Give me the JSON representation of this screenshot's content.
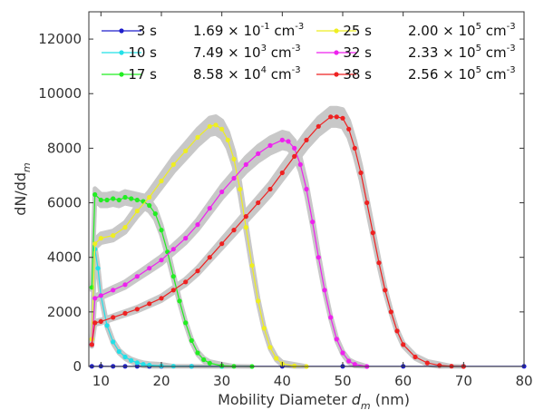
{
  "chart_data": {
    "type": "line",
    "title": "",
    "xlabel": "Mobility Diameter",
    "xlabel_symbol": "d",
    "xlabel_sub": "m",
    "xlabel_unit": "(nm)",
    "ylabel_main": "dN/dd",
    "ylabel_sub": "m",
    "xlim": [
      8,
      80
    ],
    "ylim": [
      0,
      13000
    ],
    "xticks": [
      10,
      20,
      30,
      40,
      50,
      60,
      70,
      80
    ],
    "yticks": [
      0,
      2000,
      4000,
      6000,
      8000,
      10000,
      12000
    ],
    "uncertainty_band_color": "#c8c8c8",
    "legend_location": "top",
    "series": [
      {
        "name": "3 s",
        "conc_mant": "1.69",
        "conc_exp": "-1",
        "conc_unit": "cm",
        "conc_unit_exp": "-3",
        "color": "#1f1fcc",
        "x": [
          8.5,
          10,
          12,
          14,
          16,
          18,
          20,
          25,
          30,
          40,
          50,
          60,
          70,
          80
        ],
        "y": [
          5,
          10,
          5,
          5,
          5,
          5,
          5,
          5,
          5,
          5,
          5,
          5,
          5,
          5
        ]
      },
      {
        "name": "10 s",
        "conc_mant": "7.49",
        "conc_exp": "3",
        "conc_unit": "cm",
        "conc_unit_exp": "-3",
        "color": "#22e0e8",
        "x": [
          8.5,
          9,
          9.5,
          10,
          11,
          12,
          13,
          14,
          15,
          16,
          17,
          18,
          20,
          22,
          25,
          30
        ],
        "y": [
          800,
          4300,
          3600,
          2600,
          1500,
          900,
          550,
          350,
          220,
          140,
          80,
          50,
          20,
          10,
          5,
          0
        ]
      },
      {
        "name": "17 s",
        "conc_mant": "8.58",
        "conc_exp": "4",
        "conc_unit": "cm",
        "conc_unit_exp": "-3",
        "color": "#22ee22",
        "x": [
          8.5,
          9,
          10,
          11,
          12,
          13,
          14,
          15,
          16,
          17,
          18,
          19,
          20,
          21,
          22,
          23,
          24,
          25,
          26,
          27,
          28,
          30,
          32,
          35
        ],
        "y": [
          2900,
          6300,
          6100,
          6100,
          6150,
          6100,
          6200,
          6150,
          6100,
          6050,
          5900,
          5600,
          5000,
          4200,
          3300,
          2400,
          1600,
          950,
          500,
          250,
          120,
          30,
          5,
          0
        ]
      },
      {
        "name": "25 s",
        "conc_mant": "2.00",
        "conc_exp": "5",
        "conc_unit": "cm",
        "conc_unit_exp": "-3",
        "color": "#eeee22",
        "x": [
          8.5,
          9,
          10,
          12,
          14,
          16,
          18,
          20,
          22,
          24,
          26,
          28,
          29,
          30,
          31,
          32,
          33,
          34,
          35,
          36,
          37,
          38,
          39,
          40,
          42,
          44
        ],
        "y": [
          1000,
          4500,
          4700,
          4800,
          5100,
          5700,
          6200,
          6800,
          7400,
          7900,
          8400,
          8800,
          8850,
          8700,
          8300,
          7600,
          6500,
          5100,
          3700,
          2400,
          1400,
          700,
          300,
          100,
          20,
          0
        ]
      },
      {
        "name": "32 s",
        "conc_mant": "2.33",
        "conc_exp": "5",
        "conc_unit": "cm",
        "conc_unit_exp": "-3",
        "color": "#ee22ee",
        "x": [
          8.5,
          9,
          10,
          12,
          14,
          16,
          18,
          20,
          22,
          24,
          26,
          28,
          30,
          32,
          34,
          36,
          38,
          40,
          41,
          42,
          43,
          44,
          45,
          46,
          47,
          48,
          49,
          50,
          51,
          52,
          54
        ],
        "y": [
          800,
          2500,
          2600,
          2800,
          3000,
          3300,
          3600,
          3900,
          4300,
          4700,
          5200,
          5800,
          6400,
          6900,
          7400,
          7800,
          8100,
          8300,
          8250,
          8000,
          7400,
          6500,
          5300,
          4000,
          2800,
          1800,
          1000,
          500,
          200,
          80,
          0
        ]
      },
      {
        "name": "38 s",
        "conc_mant": "2.56",
        "conc_exp": "5",
        "conc_unit": "cm",
        "conc_unit_exp": "-3",
        "color": "#ee2222",
        "x": [
          8.5,
          9,
          10,
          12,
          14,
          16,
          18,
          20,
          22,
          24,
          26,
          28,
          30,
          32,
          34,
          36,
          38,
          40,
          42,
          44,
          46,
          48,
          49,
          50,
          51,
          52,
          53,
          54,
          55,
          56,
          57,
          58,
          59,
          60,
          62,
          64,
          66,
          68,
          70
        ],
        "y": [
          800,
          1600,
          1650,
          1800,
          1950,
          2100,
          2300,
          2500,
          2800,
          3100,
          3500,
          4000,
          4500,
          5000,
          5500,
          6000,
          6500,
          7100,
          7700,
          8300,
          8800,
          9150,
          9150,
          9100,
          8700,
          8000,
          7100,
          6000,
          4900,
          3800,
          2800,
          2000,
          1300,
          800,
          350,
          130,
          40,
          10,
          0
        ]
      }
    ]
  }
}
